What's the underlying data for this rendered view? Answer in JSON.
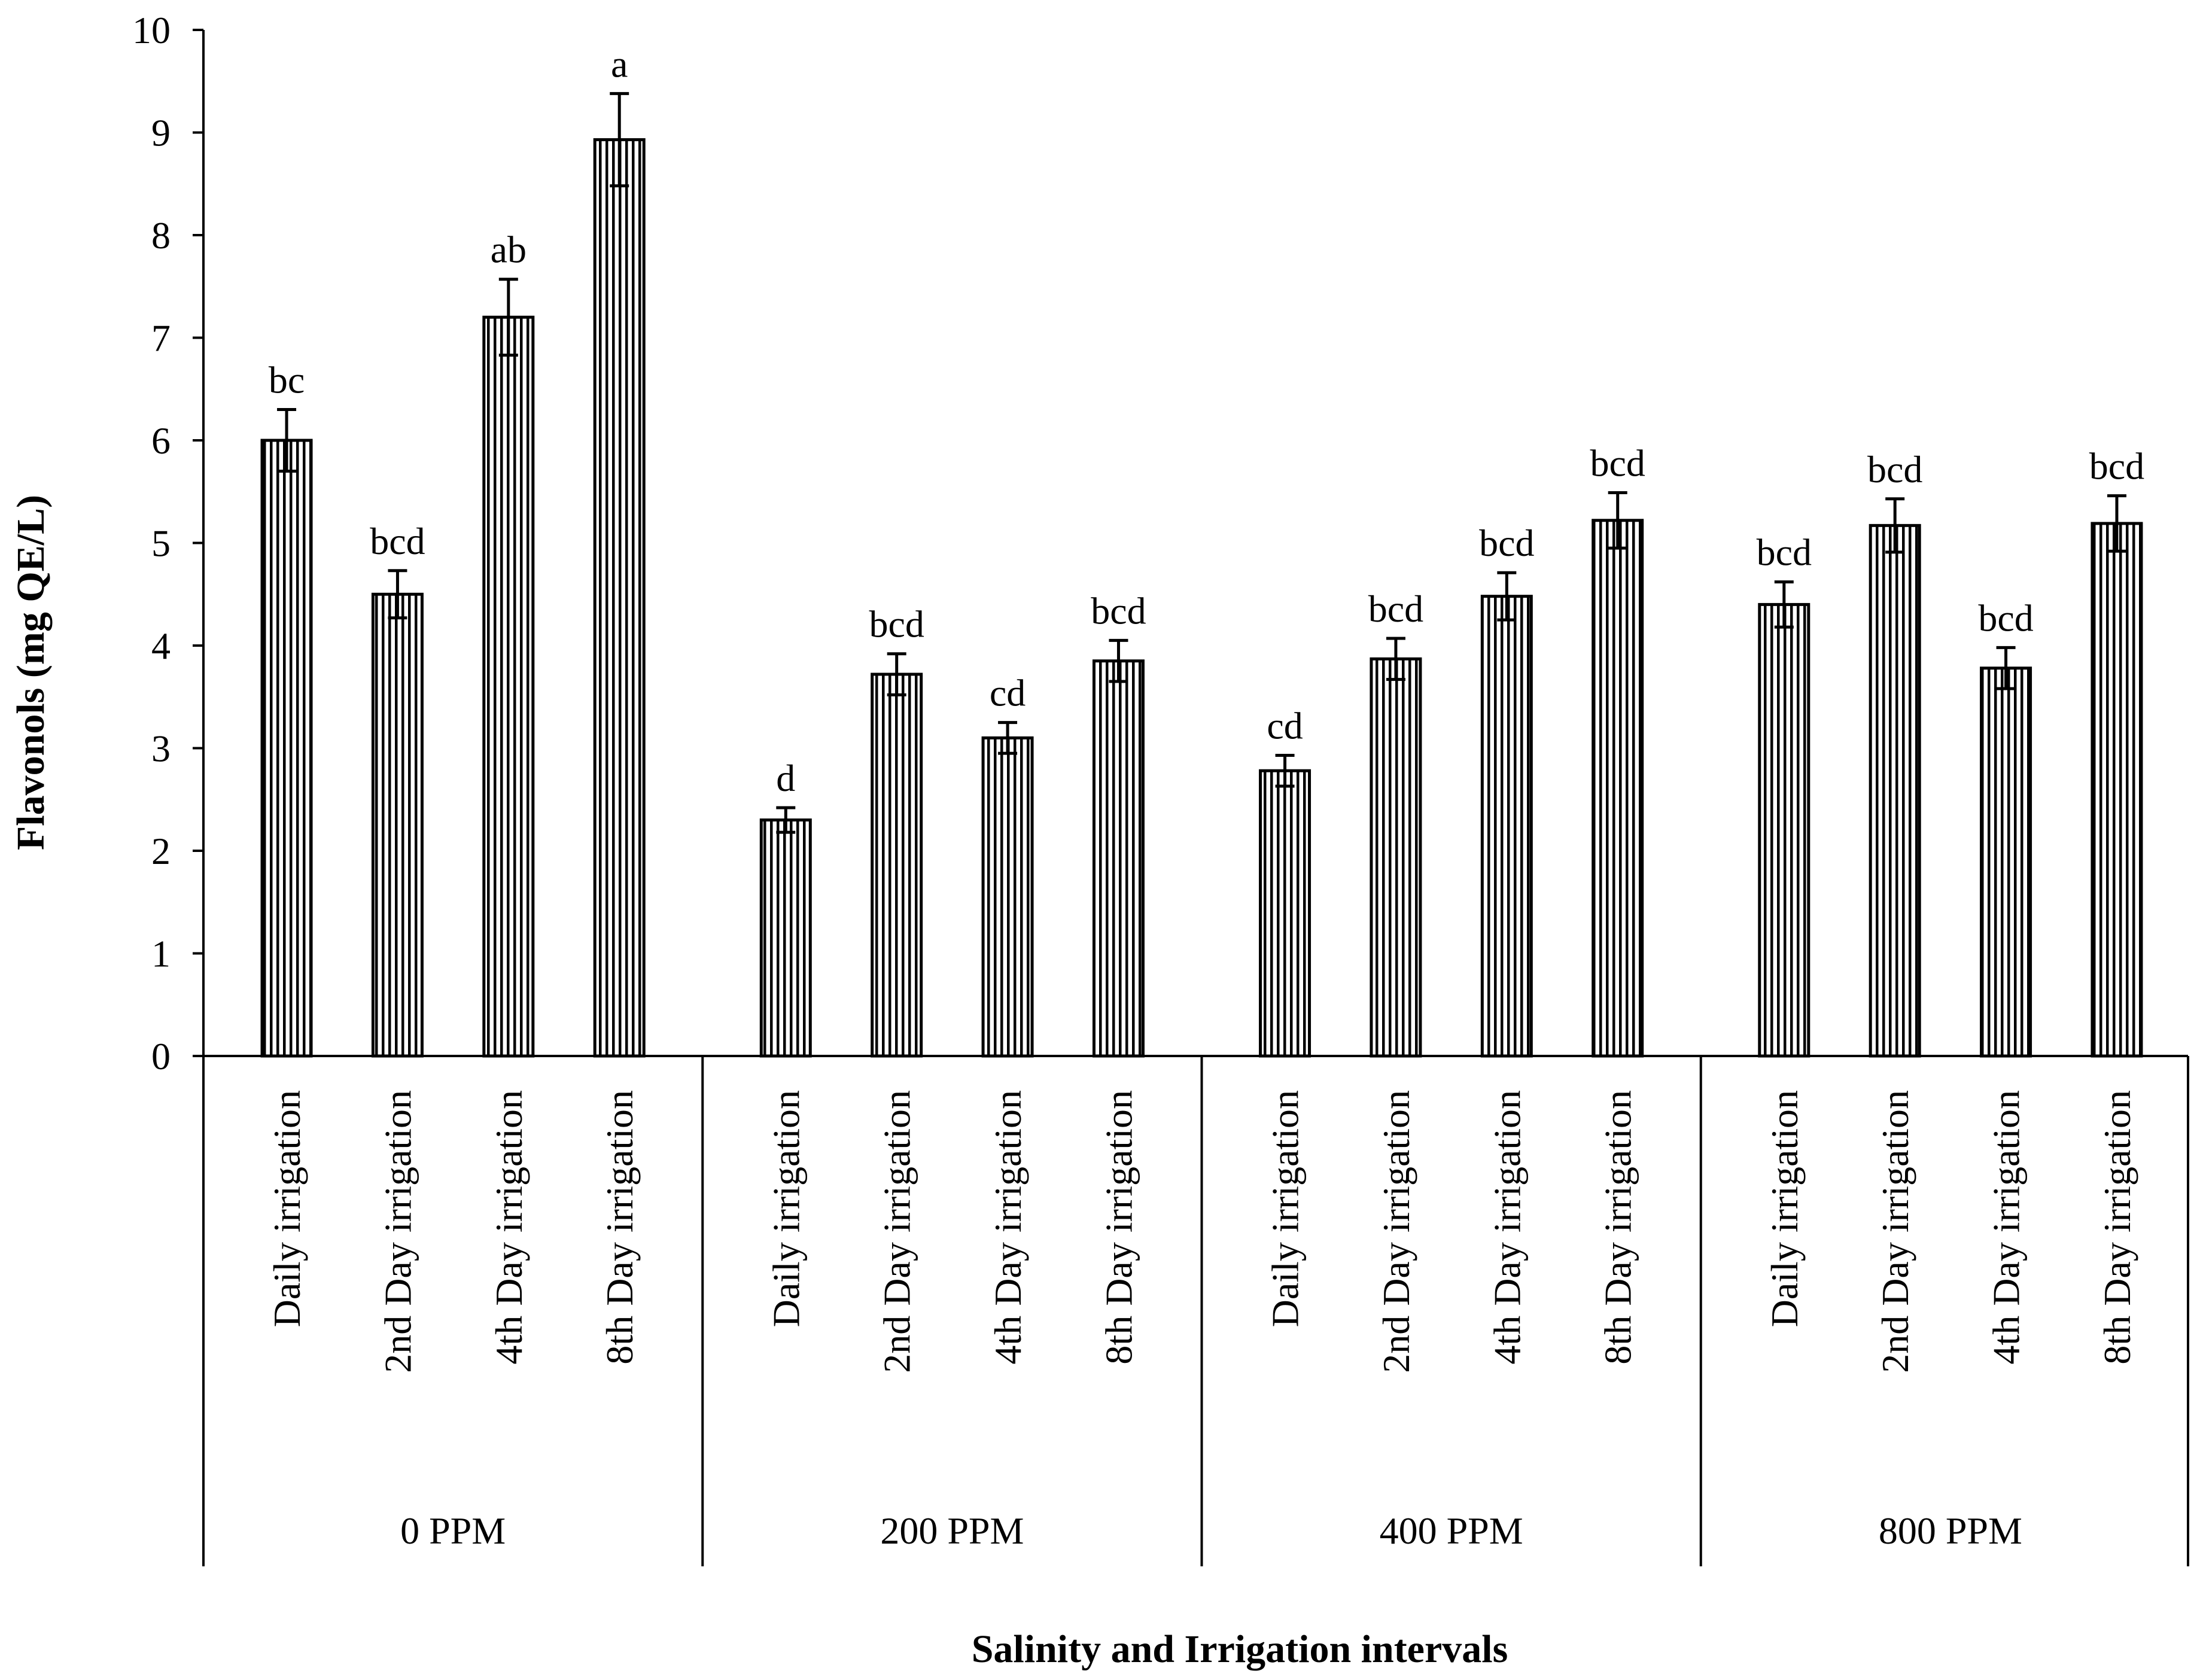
{
  "chart_data": {
    "type": "bar",
    "title": "",
    "xlabel": "Salinity and Irrigation intervals",
    "ylabel": "Flavonols (mg QE/L)",
    "ylim": [
      0,
      10
    ],
    "yticks": [
      0,
      1,
      2,
      3,
      4,
      5,
      6,
      7,
      8,
      9,
      10
    ],
    "yticks_text": [
      "0",
      "1",
      "2",
      "3",
      "4",
      "5",
      "6",
      "7",
      "8",
      "9",
      "10"
    ],
    "grid": false,
    "legend": "none",
    "bar_pattern": "vertical-stripes",
    "categories": [
      "Daily irrigation",
      "2nd Day irrigation",
      "4th Day irrigation",
      "8th Day irrigation"
    ],
    "groups": [
      {
        "label": "0 PPM",
        "values": [
          6.0,
          4.5,
          7.2,
          8.93
        ],
        "errors": [
          0.3,
          0.23,
          0.37,
          0.45
        ],
        "letters": [
          "bc",
          "bcd",
          "ab",
          "a"
        ]
      },
      {
        "label": "200 PPM",
        "values": [
          2.3,
          3.72,
          3.1,
          3.85
        ],
        "errors": [
          0.12,
          0.2,
          0.15,
          0.2
        ],
        "letters": [
          "d",
          "bcd",
          "cd",
          "bcd"
        ]
      },
      {
        "label": "400 PPM",
        "values": [
          2.78,
          3.87,
          4.48,
          5.22
        ],
        "errors": [
          0.15,
          0.2,
          0.23,
          0.27
        ],
        "letters": [
          "cd",
          "bcd",
          "bcd",
          "bcd"
        ]
      },
      {
        "label": "800 PPM",
        "values": [
          4.4,
          5.17,
          3.78,
          5.19
        ],
        "errors": [
          0.22,
          0.26,
          0.2,
          0.27
        ],
        "letters": [
          "bcd",
          "bcd",
          "bcd",
          "bcd"
        ]
      }
    ]
  }
}
